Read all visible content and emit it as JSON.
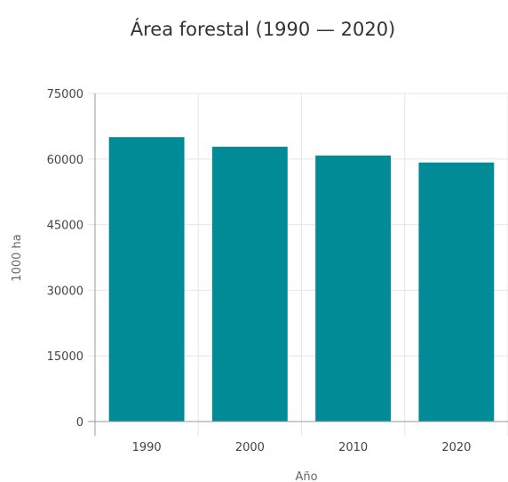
{
  "chart_data": {
    "type": "bar",
    "title": "Área forestal (1990 — 2020)",
    "xlabel": "Año",
    "ylabel": "1000 ha",
    "categories": [
      "1990",
      "2000",
      "2010",
      "2020"
    ],
    "values": [
      65000,
      62800,
      60800,
      59200
    ],
    "ylim": [
      0,
      75000
    ],
    "yticks": [
      "0",
      "15000",
      "30000",
      "45000",
      "60000",
      "75000"
    ],
    "grid": true,
    "legend": "none",
    "bar_color": "#008b96"
  }
}
